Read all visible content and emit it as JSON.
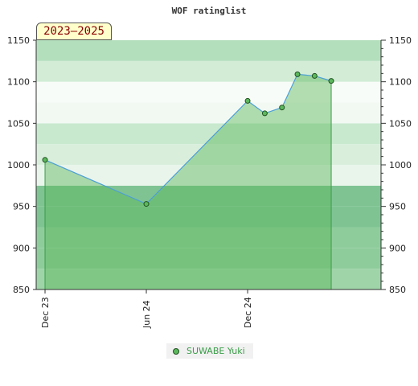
{
  "chart_data": {
    "type": "area",
    "title": "WOF ratinglist",
    "period_badge": "2023–2025",
    "ylim": [
      850,
      1150
    ],
    "yticks": [
      850,
      900,
      950,
      1000,
      1050,
      1100,
      1150
    ],
    "x_tick_labels": [
      {
        "date": "2023-12-01",
        "label": "Dec 23"
      },
      {
        "date": "2024-06-01",
        "label": "Jun 24"
      },
      {
        "date": "2024-12-01",
        "label": "Dec 24"
      }
    ],
    "xlim": [
      "2023-11-15",
      "2025-07-30"
    ],
    "series": [
      {
        "name": "SUWABE Yuki",
        "color": "#5cb85c",
        "line_color": "#4d9fd6",
        "points": [
          {
            "x": "2023-12-01",
            "y": 1006
          },
          {
            "x": "2024-06-01",
            "y": 953
          },
          {
            "x": "2024-12-01",
            "y": 1077
          },
          {
            "x": "2025-01-01",
            "y": 1062
          },
          {
            "x": "2025-02-01",
            "y": 1069
          },
          {
            "x": "2025-03-01",
            "y": 1109
          },
          {
            "x": "2025-04-01",
            "y": 1107
          },
          {
            "x": "2025-05-01",
            "y": 1101
          }
        ]
      }
    ],
    "grid": "horizontal bands",
    "legend": "bottom-center"
  }
}
